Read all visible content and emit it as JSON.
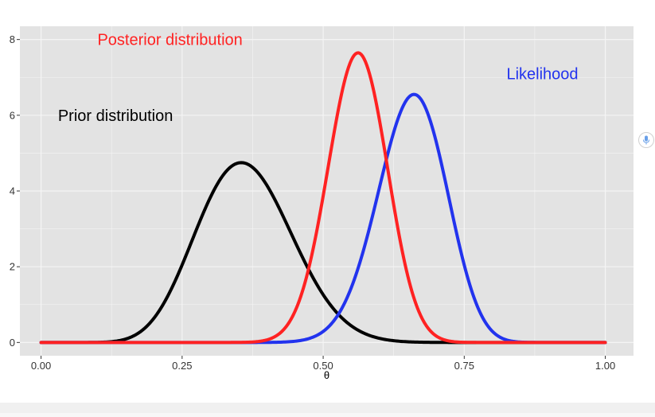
{
  "chart_data": {
    "type": "line",
    "title": "",
    "xlabel": "θ",
    "ylabel": "",
    "xlim": [
      -0.0375,
      1.05
    ],
    "ylim": [
      -0.35,
      8.35
    ],
    "xticks": [
      0,
      0.25,
      0.5,
      0.75,
      1
    ],
    "xtick_labels": [
      "0.00",
      "0.25",
      "0.50",
      "0.75",
      "1.00"
    ],
    "yticks": [
      0,
      2,
      4,
      6,
      8
    ],
    "ytick_labels": [
      "0",
      "2",
      "4",
      "6",
      "8"
    ],
    "grid": true,
    "legend": "none",
    "series": [
      {
        "key": "prior",
        "color": "#000000",
        "dist": "beta",
        "params": {
          "a": 12,
          "b": 21
        },
        "peak": {
          "x": 0.344,
          "y": 4.62
        }
      },
      {
        "key": "likelihood",
        "color": "#2233ee",
        "dist": "beta",
        "params": {
          "a": 40,
          "b": 21
        },
        "peak": {
          "x": 0.661,
          "y": 7.09
        }
      },
      {
        "key": "posterior",
        "color": "#ff2222",
        "dist": "beta",
        "params": {
          "a": 51,
          "b": 40
        },
        "peak": {
          "x": 0.567,
          "y": 8.06
        }
      }
    ],
    "annotations": [
      {
        "key": "posterior_label",
        "text": "Posterior distribution",
        "color": "#ff2222",
        "x": 0.1,
        "y": 8.0
      },
      {
        "key": "likelihood_label",
        "text": "Likelihood",
        "color": "#2233ee",
        "x": 0.825,
        "y": 7.1
      },
      {
        "key": "prior_label",
        "text": "Prior distribution",
        "color": "#000000",
        "x": 0.03,
        "y": 6.0
      }
    ],
    "panel_background": "#e3e3e3",
    "gridline_color": "#f5f5f5",
    "axis_text_color": "#333333"
  },
  "icons": {
    "side_button": "microphone-icon"
  }
}
